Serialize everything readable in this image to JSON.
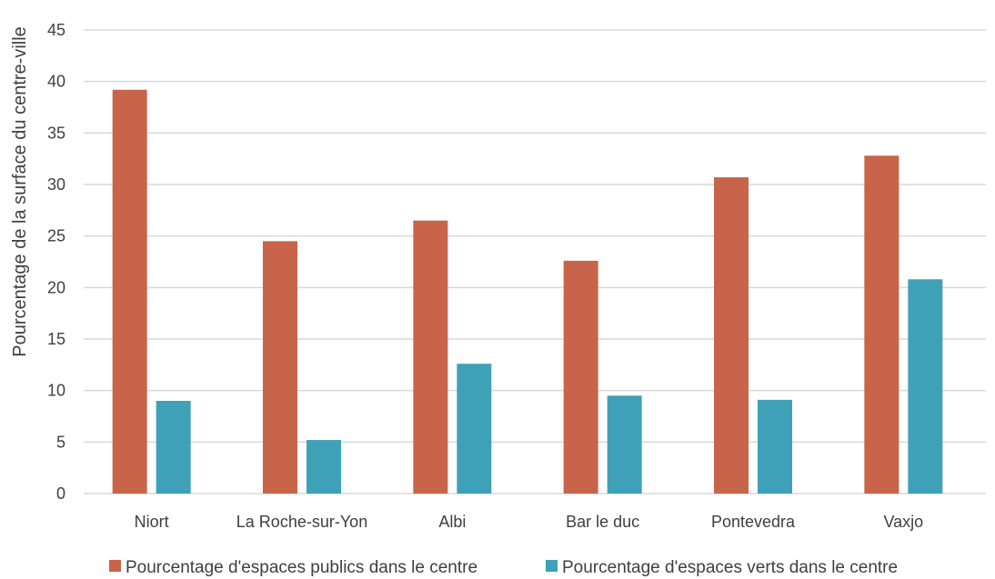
{
  "chart_data": {
    "type": "bar",
    "title": "",
    "xlabel": "",
    "ylabel": "Pourcentage de la surface du centre-ville",
    "ylim": [
      0,
      45
    ],
    "yticks": [
      0,
      5,
      10,
      15,
      20,
      25,
      30,
      35,
      40,
      45
    ],
    "grid": true,
    "legend_position": "bottom",
    "categories": [
      "Niort",
      "La Roche-sur-Yon",
      "Albi",
      "Bar le duc",
      "Pontevedra",
      "Vaxjo"
    ],
    "series": [
      {
        "name": "Pourcentage d'espaces publics dans le centre",
        "color": "#c8644a",
        "values": [
          39.2,
          24.5,
          26.5,
          22.6,
          30.7,
          32.8
        ]
      },
      {
        "name": "Pourcentage d'espaces verts dans le centre",
        "color": "#3fa1b8",
        "values": [
          9.0,
          5.2,
          12.6,
          9.5,
          9.1,
          20.8
        ]
      }
    ]
  }
}
